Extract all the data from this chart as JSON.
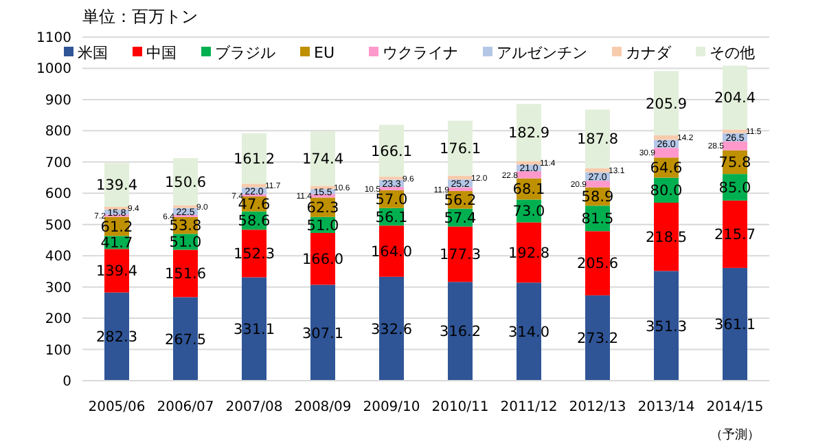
{
  "chart_data": {
    "type": "bar",
    "title": "単位：百万トン",
    "stacked": true,
    "grid": "y",
    "legend": "top",
    "categories": [
      "2005/06",
      "2006/07",
      "2007/08",
      "2008/09",
      "2009/10",
      "2010/11",
      "2011/12",
      "2012/13",
      "2013/14",
      "2014/15\n（予測）"
    ],
    "ylim": [
      0,
      1100
    ],
    "yticks": [
      0,
      100,
      200,
      300,
      400,
      500,
      600,
      700,
      800,
      900,
      1000,
      1100
    ],
    "series": [
      {
        "name": "米国",
        "color": "#2f5597",
        "values": [
          282.3,
          267.5,
          331.1,
          307.1,
          332.6,
          316.2,
          314.0,
          273.2,
          351.3,
          361.1
        ],
        "value_labels": [
          "282.3",
          "267.5",
          "331.1",
          "307.1",
          "332.6",
          "316.2",
          "314.0",
          "273.2",
          "351.3",
          "361.1"
        ]
      },
      {
        "name": "中国",
        "color": "#ff0000",
        "values": [
          139.4,
          151.6,
          152.3,
          166.0,
          164.0,
          177.3,
          192.8,
          205.6,
          218.5,
          215.7
        ],
        "value_labels": [
          "139.4",
          "151.6",
          "152.3",
          "166.0",
          "164.0",
          "177.3",
          "192.8",
          "205.6",
          "218.5",
          "215.7"
        ]
      },
      {
        "name": "ブラジル",
        "color": "#00b050",
        "values": [
          41.7,
          51.0,
          58.6,
          51.0,
          56.1,
          57.4,
          73.0,
          81.5,
          80.0,
          85.0
        ],
        "value_labels": [
          "41.7",
          "51.0",
          "58.6",
          "51.0",
          "56.1",
          "57.4",
          "73.0",
          "81.5",
          "80.0",
          "85.0"
        ]
      },
      {
        "name": "EU",
        "color": "#bf9000",
        "values": [
          61.2,
          53.8,
          47.6,
          62.3,
          57.0,
          56.2,
          68.1,
          58.9,
          64.6,
          75.8
        ],
        "value_labels": [
          "61.2",
          "53.8",
          "47.6",
          "62.3",
          "57.0",
          "56.2",
          "68.1",
          "58.9",
          "64.6",
          "75.8"
        ]
      },
      {
        "name": "ウクライナ",
        "color": "#ff99cc",
        "values": [
          7.2,
          6.4,
          7.4,
          11.4,
          10.5,
          11.9,
          22.8,
          20.9,
          30.9,
          28.5
        ],
        "value_labels": [
          "7.2",
          "6.4",
          "7.4",
          "11.4",
          "10.5",
          "11.9",
          "22.8",
          "20.9",
          "30.9",
          "28.5"
        ]
      },
      {
        "name": "アルゼンチン",
        "color": "#b4c7e7",
        "values": [
          15.8,
          22.5,
          22.0,
          15.5,
          23.3,
          25.2,
          21.0,
          27.0,
          26.0,
          26.5
        ],
        "value_labels": [
          "15.8",
          "22.5",
          "22.0",
          "15.5",
          "23.3",
          "25.2",
          "21.0",
          "27.0",
          "26.0",
          "26.5"
        ]
      },
      {
        "name": "カナダ",
        "color": "#f8cbad",
        "values": [
          9.4,
          9.0,
          11.7,
          10.6,
          9.6,
          12.0,
          11.4,
          13.1,
          14.2,
          11.5
        ],
        "value_labels": [
          "9.4",
          "9.0",
          "11.7",
          "10.6",
          "9.6",
          "12.0",
          "11.4",
          "13.1",
          "14.2",
          "11.5"
        ]
      },
      {
        "name": "その他",
        "color": "#e2efda",
        "values": [
          139.4,
          150.6,
          161.2,
          174.4,
          166.1,
          176.1,
          182.9,
          187.8,
          205.9,
          204.4
        ],
        "value_labels": [
          "139.4",
          "150.6",
          "161.2",
          "174.4",
          "166.1",
          "176.1",
          "182.9",
          "187.8",
          "205.9",
          "204.4"
        ]
      }
    ]
  }
}
